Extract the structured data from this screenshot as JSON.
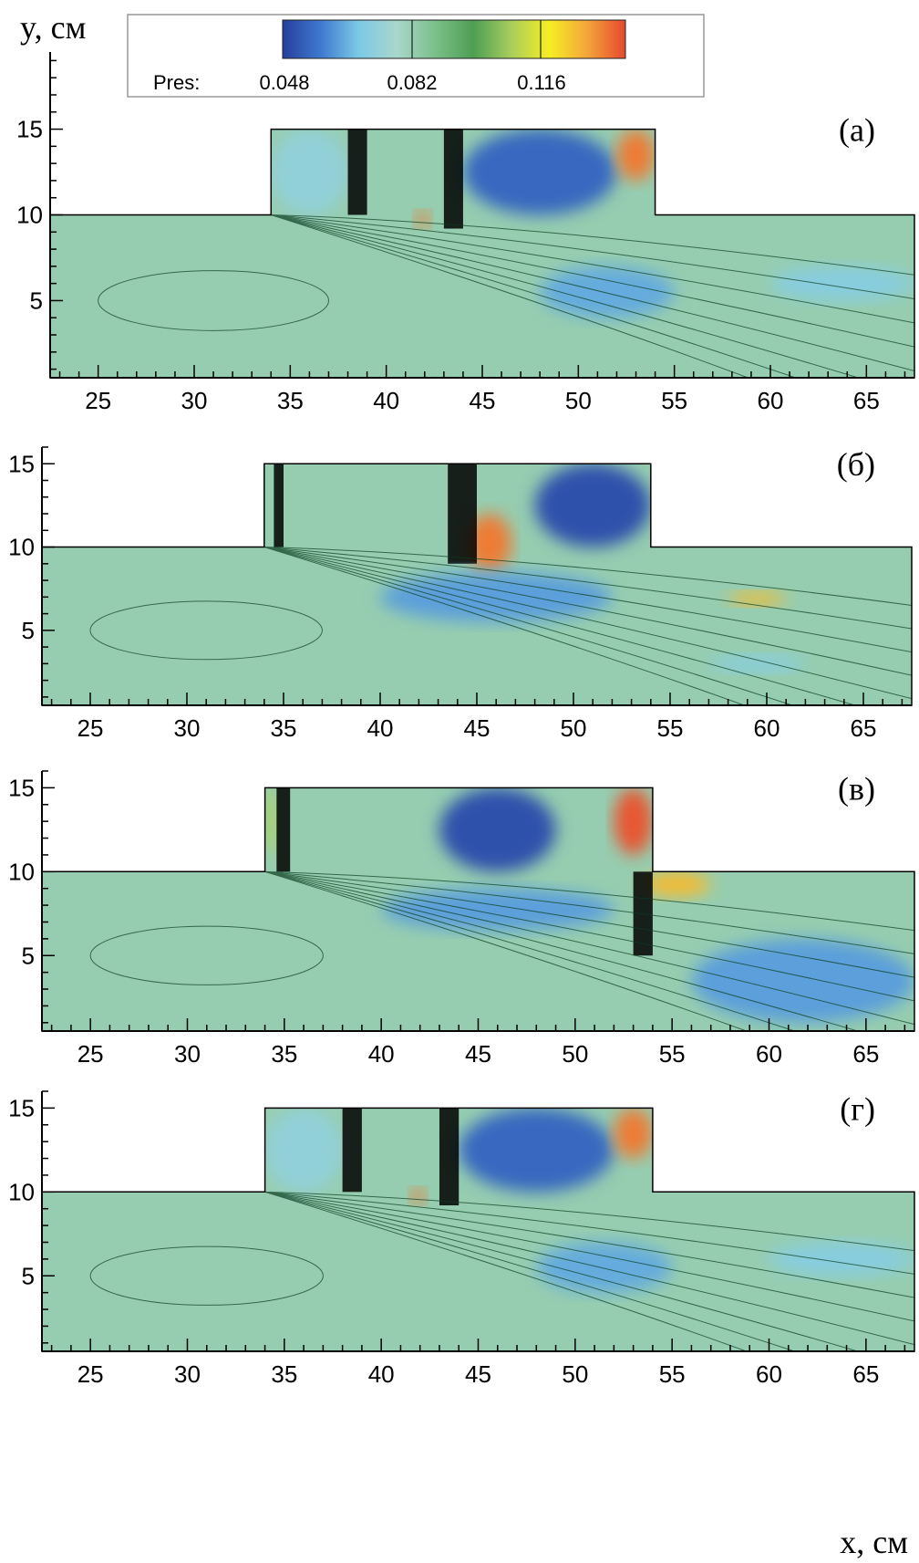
{
  "chart_data": {
    "type": "heatmap",
    "variable": "Pres",
    "colorbar": {
      "label": "Pres:",
      "ticks": [
        0.048,
        0.082,
        0.116
      ],
      "tick_labels": [
        "0.048",
        "0.082",
        "0.116"
      ],
      "range": [
        0.031,
        0.147
      ],
      "colors": [
        "#263f9c",
        "#3f79cf",
        "#7cc9e6",
        "#a9d7cb",
        "#7cc08a",
        "#4e9e54",
        "#a8ce5c",
        "#f6ee24",
        "#f3a53a",
        "#e5492f"
      ]
    },
    "xlabel": "x, см",
    "ylabel": "y, см",
    "xlim": [
      22.5,
      67.5
    ],
    "x_ticks": [
      25,
      30,
      35,
      40,
      45,
      50,
      55,
      60,
      65
    ],
    "x_tick_labels": [
      "25",
      "30",
      "35",
      "40",
      "45",
      "50",
      "55",
      "60",
      "65"
    ],
    "domain_outline": [
      [
        22.5,
        0.5
      ],
      [
        22.5,
        10
      ],
      [
        34,
        10
      ],
      [
        34,
        15
      ],
      [
        54,
        15
      ],
      [
        54,
        10
      ],
      [
        67.5,
        10
      ],
      [
        67.5,
        0.5
      ]
    ],
    "panels": [
      {
        "label": "(а)",
        "ylim": [
          0.5,
          19.5
        ],
        "y_ticks": [
          5,
          10,
          15
        ],
        "y_tick_labels": [
          "5",
          "10",
          "15"
        ],
        "features": [
          {
            "kind": "cavity-low-pressure",
            "x": [
              34,
              38
            ],
            "y": [
              10,
              15
            ],
            "level": 0.063
          },
          {
            "kind": "vortex-low-pressure",
            "x": [
              44,
              52
            ],
            "y": [
              10,
              15
            ],
            "level": 0.04
          },
          {
            "kind": "high-pressure-corner",
            "x": [
              52,
              54
            ],
            "y": [
              12,
              15
            ],
            "level": 0.14
          },
          {
            "kind": "high-pressure-spot",
            "x": [
              41.5,
              42.3
            ],
            "y": [
              9.3,
              10.2
            ],
            "level": 0.14
          },
          {
            "kind": "shock-band",
            "x": [
              38,
              39
            ],
            "y": [
              10,
              15
            ],
            "level": 0.09
          },
          {
            "kind": "shock-band",
            "x": [
              43,
              44
            ],
            "y": [
              9.2,
              15
            ],
            "level": 0.09
          },
          {
            "kind": "expansion-low",
            "x": [
              48,
              55
            ],
            "y": [
              4,
              7
            ],
            "level": 0.052
          },
          {
            "kind": "wake-low",
            "x": [
              60,
              67.5
            ],
            "y": [
              5,
              7
            ],
            "level": 0.06
          }
        ]
      },
      {
        "label": "(б)",
        "ylim": [
          0.5,
          16
        ],
        "y_ticks": [
          5,
          10,
          15
        ],
        "y_tick_labels": [
          "5",
          "10",
          "15"
        ],
        "features": [
          {
            "kind": "vortex-low-pressure",
            "x": [
              48,
              54
            ],
            "y": [
              10,
              15
            ],
            "level": 0.035
          },
          {
            "kind": "high-pressure-spot",
            "x": [
              44.5,
              46.8
            ],
            "y": [
              8.5,
              12
            ],
            "level": 0.14
          },
          {
            "kind": "shock-band",
            "x": [
              34.5,
              35
            ],
            "y": [
              10,
              15
            ],
            "level": 0.09
          },
          {
            "kind": "shock-band",
            "x": [
              43.5,
              45
            ],
            "y": [
              9,
              15
            ],
            "level": 0.09
          },
          {
            "kind": "high-pressure-spot",
            "x": [
              58,
              61
            ],
            "y": [
              6.5,
              7.3
            ],
            "level": 0.13
          },
          {
            "kind": "expansion-low",
            "x": [
              40,
              52
            ],
            "y": [
              5.5,
              8.5
            ],
            "level": 0.05
          },
          {
            "kind": "wake-low",
            "x": [
              57,
              62
            ],
            "y": [
              2.5,
              3.5
            ],
            "level": 0.06
          }
        ]
      },
      {
        "label": "(в)",
        "ylim": [
          0.5,
          16
        ],
        "y_ticks": [
          5,
          10,
          15
        ],
        "y_tick_labels": [
          "5",
          "10",
          "15"
        ],
        "features": [
          {
            "kind": "vortex-low-pressure",
            "x": [
              43,
              49
            ],
            "y": [
              10,
              15
            ],
            "level": 0.035
          },
          {
            "kind": "high-pressure-corner",
            "x": [
              52,
              54
            ],
            "y": [
              11,
              15
            ],
            "level": 0.145
          },
          {
            "kind": "high-pressure-spot",
            "x": [
              53.5,
              57
            ],
            "y": [
              8.5,
              10
            ],
            "level": 0.13
          },
          {
            "kind": "yellow-band",
            "x": [
              34,
              34.6
            ],
            "y": [
              11,
              15
            ],
            "level": 0.11
          },
          {
            "kind": "shock-band",
            "x": [
              34.6,
              35.3
            ],
            "y": [
              10,
              15
            ],
            "level": 0.09
          },
          {
            "kind": "shock-band",
            "x": [
              53,
              54
            ],
            "y": [
              5,
              10
            ],
            "level": 0.09
          },
          {
            "kind": "expansion-low",
            "x": [
              40,
              52
            ],
            "y": [
              6.5,
              9
            ],
            "level": 0.05
          },
          {
            "kind": "wake-low",
            "x": [
              56,
              67.5
            ],
            "y": [
              1,
              6
            ],
            "level": 0.05
          }
        ]
      },
      {
        "label": "(г)",
        "ylim": [
          0.5,
          16
        ],
        "y_ticks": [
          5,
          10,
          15
        ],
        "y_tick_labels": [
          "5",
          "10",
          "15"
        ],
        "features": [
          {
            "kind": "cavity-low-pressure",
            "x": [
              34,
              38
            ],
            "y": [
              10,
              15
            ],
            "level": 0.063
          },
          {
            "kind": "vortex-low-pressure",
            "x": [
              44,
              52
            ],
            "y": [
              10,
              15
            ],
            "level": 0.04
          },
          {
            "kind": "high-pressure-corner",
            "x": [
              52,
              54
            ],
            "y": [
              12,
              15
            ],
            "level": 0.14
          },
          {
            "kind": "high-pressure-spot",
            "x": [
              41.5,
              42.3
            ],
            "y": [
              9.3,
              10.2
            ],
            "level": 0.14
          },
          {
            "kind": "shock-band",
            "x": [
              38,
              39
            ],
            "y": [
              10,
              15
            ],
            "level": 0.09
          },
          {
            "kind": "shock-band",
            "x": [
              43,
              44
            ],
            "y": [
              9.2,
              15
            ],
            "level": 0.09
          },
          {
            "kind": "expansion-low",
            "x": [
              48,
              55
            ],
            "y": [
              4,
              7
            ],
            "level": 0.052
          },
          {
            "kind": "wake-low",
            "x": [
              60,
              67.5
            ],
            "y": [
              5,
              7
            ],
            "level": 0.06
          }
        ]
      }
    ]
  }
}
